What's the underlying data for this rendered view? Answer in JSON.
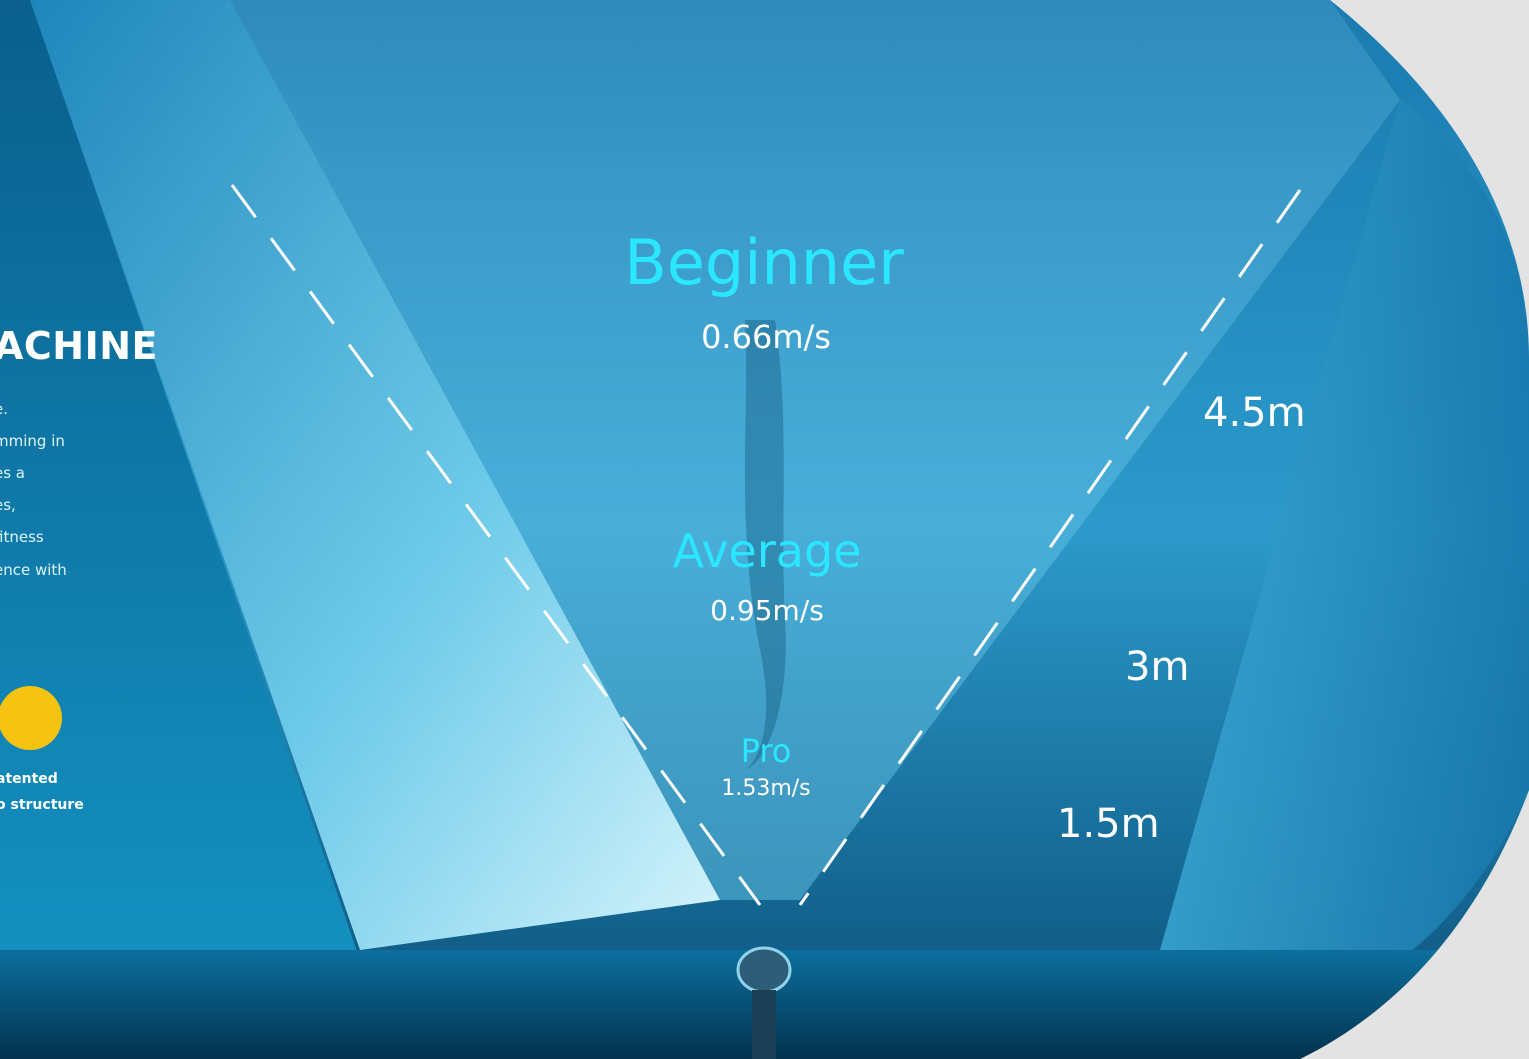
{
  "intro": {
    "heading": "ACHINE",
    "description_lines": [
      "e.",
      "mming in",
      "es a",
      "es,",
      "fitness",
      "ence with"
    ],
    "feature": {
      "icon": "propeller-icon",
      "icon_color": "#f6c312",
      "label_lines": [
        "atented",
        "o structure"
      ]
    }
  },
  "speed_zones": [
    {
      "level": "Beginner",
      "speed": "0.66m/s",
      "distance": "4.5m"
    },
    {
      "level": "Average",
      "speed": "0.95m/s",
      "distance": "3m"
    },
    {
      "level": "Pro",
      "speed": "1.53m/s",
      "distance": "1.5m"
    }
  ],
  "colors": {
    "accent": "#2be6ff",
    "water_deep": "#0b5c86",
    "water_light": "#7fd6f2",
    "page_background": "#e3e3e3"
  }
}
